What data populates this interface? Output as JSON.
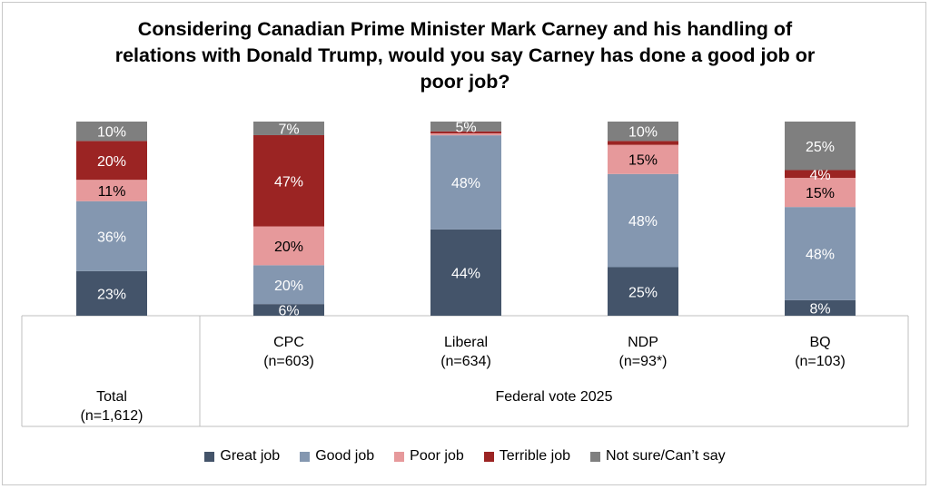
{
  "chart_data": {
    "type": "bar",
    "stacked": true,
    "title": "Considering Canadian Prime Minister Mark Carney and his handling of relations with Donald Trump, would you say Carney has done a good job or poor job?",
    "categories": [
      {
        "name": "Total",
        "n": "(n=1,612)"
      },
      {
        "name": "CPC",
        "n": "(n=603)"
      },
      {
        "name": "Liberal",
        "n": "(n=634)"
      },
      {
        "name": "NDP",
        "n": "(n=93*)"
      },
      {
        "name": "BQ",
        "n": "(n=103)"
      }
    ],
    "group_label": "Federal vote 2025",
    "ylim": [
      0,
      100
    ],
    "series": [
      {
        "name": "Great job",
        "color": "#44546a",
        "label_color": "#ffffff",
        "values": [
          23,
          6,
          44,
          25,
          8
        ],
        "labels": [
          "23%",
          "6%",
          "44%",
          "25%",
          "8%"
        ]
      },
      {
        "name": "Good job",
        "color": "#8497b0",
        "label_color": "#ffffff",
        "values": [
          36,
          20,
          48,
          48,
          48
        ],
        "labels": [
          "36%",
          "20%",
          "48%",
          "48%",
          "48%"
        ]
      },
      {
        "name": "Poor job",
        "color": "#e6999b",
        "label_color": "#000000",
        "values": [
          11,
          20,
          1,
          15,
          15
        ],
        "labels": [
          "11%",
          "20%",
          "",
          "15%",
          "15%"
        ]
      },
      {
        "name": "Terrible job",
        "color": "#9b2423",
        "label_color": "#ffffff",
        "values": [
          20,
          47,
          1,
          2,
          4
        ],
        "labels": [
          "20%",
          "47%",
          "",
          "",
          "4%"
        ]
      },
      {
        "name": "Not sure/Can’t say",
        "color": "#7f7f7f",
        "label_color": "#ffffff",
        "values": [
          10,
          7,
          5,
          10,
          25
        ],
        "labels": [
          "10%",
          "7%",
          "5%",
          "10%",
          "25%"
        ]
      }
    ]
  }
}
